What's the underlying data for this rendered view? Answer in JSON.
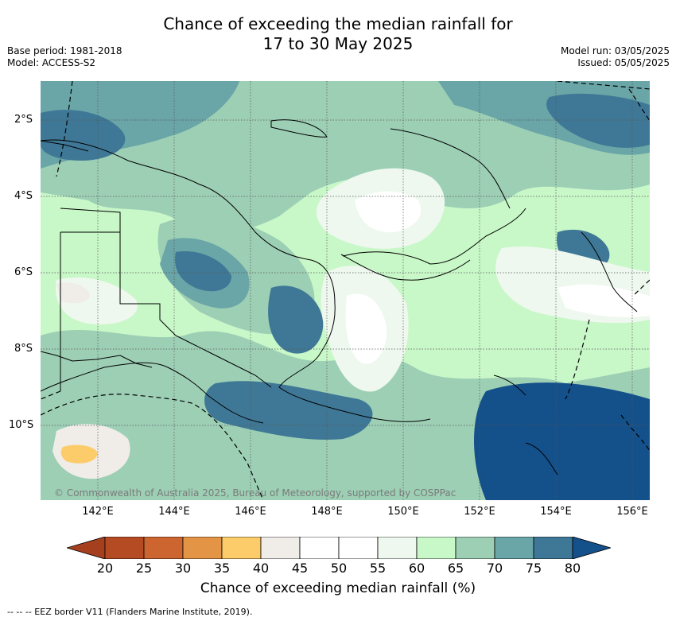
{
  "title": {
    "line1": "Chance of exceeding the median rainfall for",
    "line2": "17 to 30 May 2025"
  },
  "meta": {
    "base_period": "Base period: 1981-2018",
    "model": "Model: ACCESS-S2",
    "model_run": "Model run: 03/05/2025",
    "issued": "Issued: 05/05/2025"
  },
  "copyright": "© Commonwealth of Australia 2025, Bureau of Meteorology, supported by COSPPac",
  "lat_labels": [
    "2°S",
    "4°S",
    "6°S",
    "8°S",
    "10°S"
  ],
  "lon_labels": [
    "142°E",
    "144°E",
    "146°E",
    "148°E",
    "150°E",
    "152°E",
    "154°E",
    "156°E"
  ],
  "colorbar": {
    "ticks": [
      "20",
      "25",
      "30",
      "35",
      "40",
      "45",
      "50",
      "55",
      "60",
      "65",
      "70",
      "75",
      "80"
    ],
    "colors": [
      "#a63f1e",
      "#b54b23",
      "#cd6530",
      "#e39445",
      "#fdcc6a",
      "#f0ece8",
      "#ffffff",
      "#ffffff",
      "#eef8ee",
      "#c8f7c8",
      "#9dcfb5",
      "#6aa5a7",
      "#3f7896",
      "#14508a"
    ],
    "title": "Chance of exceeding median rainfall (%)"
  },
  "footnote": "-- -- -- EEZ border V11 (Flanders Marine Institute, 2019)."
}
